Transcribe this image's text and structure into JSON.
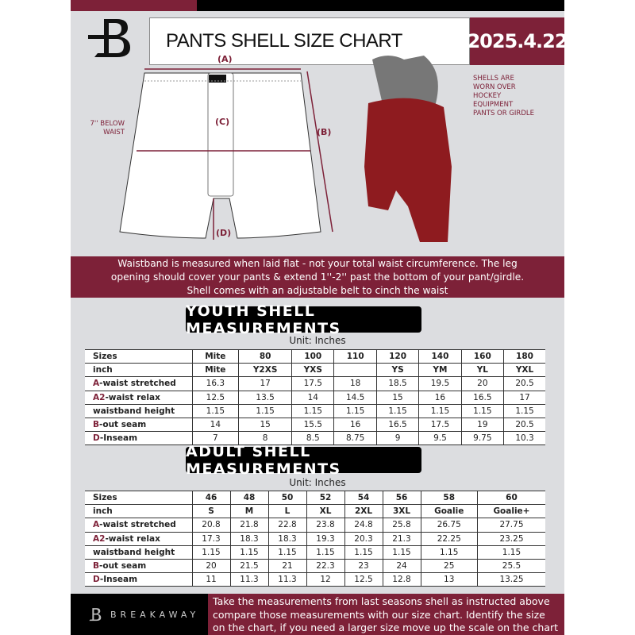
{
  "header": {
    "title": "PANTS SHELL SIZE CHART",
    "date": "2025.4.22",
    "logo": "B"
  },
  "diagram": {
    "label_a": "(A)",
    "label_b": "(B)",
    "label_c": "(C)",
    "label_d": "(D)",
    "below_waist": "7'' BELOW WAIST",
    "shell_note": "SHELLS ARE WORN OVER HOCKEY EQUIPMENT PANTS OR GIRDLE"
  },
  "description": [
    "Waistband is measured when laid flat - not your total waist circumference. The leg",
    "opening should cover your pants & extend 1''-2'' past the bottom of your pant/girdle.",
    "Shell comes with an adjustable belt to cinch the waist"
  ],
  "youth": {
    "title": "YOUTH SHELL MEASUREMENTS",
    "unit": "Unit: Inches",
    "rows": [
      {
        "prefix": "",
        "label": "Sizes",
        "values": [
          "Mite",
          "80",
          "100",
          "110",
          "120",
          "140",
          "160",
          "180"
        ],
        "bold": true
      },
      {
        "prefix": "",
        "label": "inch",
        "values": [
          "Mite",
          "Y2XS",
          "YXS",
          "",
          "YS",
          "YM",
          "YL",
          "YXL"
        ],
        "bold": true
      },
      {
        "prefix": "A",
        "label": "-waist stretched",
        "values": [
          "16.3",
          "17",
          "17.5",
          "18",
          "18.5",
          "19.5",
          "20",
          "20.5"
        ]
      },
      {
        "prefix": "A2",
        "label": "-waist relax",
        "values": [
          "12.5",
          "13.5",
          "14",
          "14.5",
          "15",
          "16",
          "16.5",
          "17"
        ]
      },
      {
        "prefix": "",
        "label": "waistband height",
        "values": [
          "1.15",
          "1.15",
          "1.15",
          "1.15",
          "1.15",
          "1.15",
          "1.15",
          "1.15"
        ]
      },
      {
        "prefix": "B",
        "label": "-out seam",
        "values": [
          "14",
          "15",
          "15.5",
          "16",
          "16.5",
          "17.5",
          "19",
          "20.5"
        ]
      },
      {
        "prefix": "D",
        "label": "-Inseam",
        "values": [
          "7",
          "8",
          "8.5",
          "8.75",
          "9",
          "9.5",
          "9.75",
          "10.3"
        ]
      }
    ]
  },
  "adult": {
    "title": "ADULT SHELL MEASUREMENTS",
    "unit": "Unit: Inches",
    "rows": [
      {
        "prefix": "",
        "label": "Sizes",
        "values": [
          "46",
          "48",
          "50",
          "52",
          "54",
          "56",
          "58",
          "60"
        ],
        "bold": true
      },
      {
        "prefix": "",
        "label": "inch",
        "values": [
          "S",
          "M",
          "L",
          "XL",
          "2XL",
          "3XL",
          "Goalie",
          "Goalie+"
        ],
        "bold": true
      },
      {
        "prefix": "A",
        "label": "-waist stretched",
        "values": [
          "20.8",
          "21.8",
          "22.8",
          "23.8",
          "24.8",
          "25.8",
          "26.75",
          "27.75"
        ]
      },
      {
        "prefix": "A2",
        "label": "-waist relax",
        "values": [
          "17.3",
          "18.3",
          "18.3",
          "19.3",
          "20.3",
          "21.3",
          "22.25",
          "23.25"
        ]
      },
      {
        "prefix": "",
        "label": "waistband height",
        "values": [
          "1.15",
          "1.15",
          "1.15",
          "1.15",
          "1.15",
          "1.15",
          "1.15",
          "1.15"
        ]
      },
      {
        "prefix": "B",
        "label": "-out seam",
        "values": [
          "20",
          "21.5",
          "21",
          "22.3",
          "23",
          "24",
          "25",
          "25.5"
        ]
      },
      {
        "prefix": "D",
        "label": "-Inseam",
        "values": [
          "11",
          "11.3",
          "11.3",
          "12",
          "12.5",
          "12.8",
          "13",
          "13.25"
        ]
      }
    ]
  },
  "footer": {
    "brand": "BREAKAWAY",
    "text": [
      "Take the measurements from last seasons shell as instructed above",
      "compare those measurements  with our size chart. Identify the size",
      "on the chart, if you need a larger size move up the scale on the chart"
    ]
  },
  "colors": {
    "accent": "#7d2138",
    "dark": "#000000",
    "background": "#dcdde0"
  }
}
